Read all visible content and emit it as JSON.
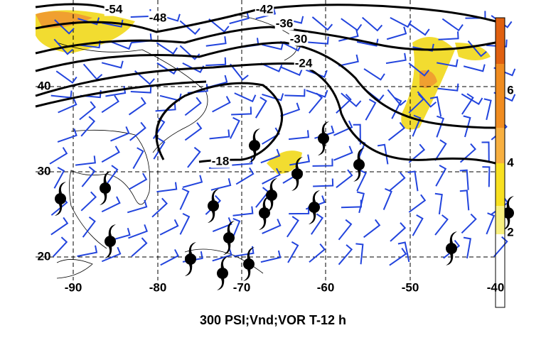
{
  "map": {
    "title": "300 PSI;Vnd;VOR T-12 h",
    "contour_labels": [
      "-54",
      "-48",
      "-42",
      "-36",
      "-30",
      "-24",
      "-18"
    ],
    "latitude_labels": [
      "40",
      "30",
      "20"
    ],
    "longitude_labels": [
      "-90",
      "-80",
      "-70",
      "-60",
      "-50",
      "-40"
    ],
    "colorbar_labels": [
      "6",
      "4",
      "2"
    ]
  }
}
